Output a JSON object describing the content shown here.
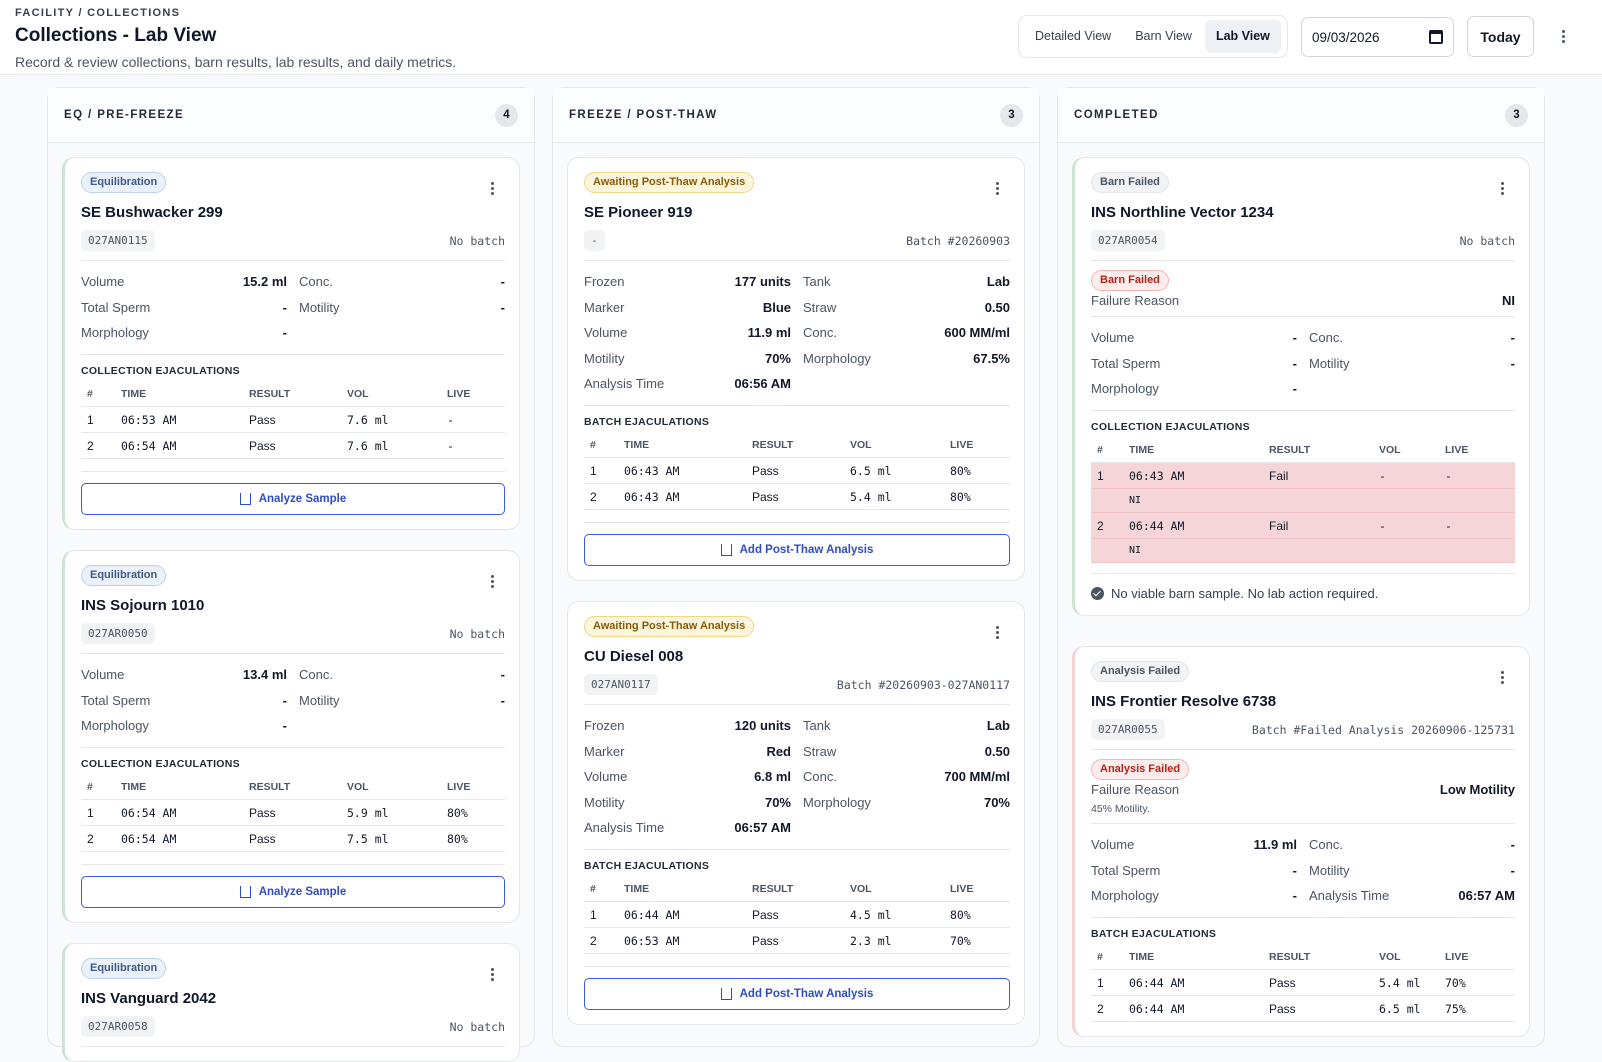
{
  "header": {
    "breadcrumb": "FACILITY / COLLECTIONS",
    "title": "Collections - Lab View",
    "subtitle": "Record & review collections, barn results, lab results, and daily metrics.",
    "views": [
      "Detailed View",
      "Barn View",
      "Lab View"
    ],
    "active_view": "Lab View",
    "date": "09/03/2026",
    "today_label": "Today"
  },
  "columns": [
    {
      "title": "EQ / PRE-FREEZE",
      "count": "4",
      "cards": [
        {
          "badge": "Equilibration",
          "name": "SE Bushwacker 299",
          "id": "027AN0115",
          "batch": "No batch",
          "metrics": [
            [
              "Volume",
              "15.2 ml"
            ],
            [
              "Conc.",
              "-"
            ],
            [
              "Total Sperm",
              "-"
            ],
            [
              "Motility",
              "-"
            ],
            [
              "Morphology",
              "-"
            ]
          ],
          "section": "COLLECTION EJACULATIONS",
          "headers": [
            "#",
            "TIME",
            "RESULT",
            "VOL",
            "LIVE"
          ],
          "rows": [
            [
              "1",
              "06:53 AM",
              "Pass",
              "7.6 ml",
              "-"
            ],
            [
              "2",
              "06:54 AM",
              "Pass",
              "7.6 ml",
              "-"
            ]
          ],
          "action": "Analyze Sample"
        },
        {
          "badge": "Equilibration",
          "name": "INS Sojourn 1010",
          "id": "027AR0050",
          "batch": "No batch",
          "metrics": [
            [
              "Volume",
              "13.4 ml"
            ],
            [
              "Conc.",
              "-"
            ],
            [
              "Total Sperm",
              "-"
            ],
            [
              "Motility",
              "-"
            ],
            [
              "Morphology",
              "-"
            ]
          ],
          "section": "COLLECTION EJACULATIONS",
          "headers": [
            "#",
            "TIME",
            "RESULT",
            "VOL",
            "LIVE"
          ],
          "rows": [
            [
              "1",
              "06:54 AM",
              "Pass",
              "5.9 ml",
              "80%"
            ],
            [
              "2",
              "06:54 AM",
              "Pass",
              "7.5 ml",
              "80%"
            ]
          ],
          "action": "Analyze Sample"
        },
        {
          "badge": "Equilibration",
          "name": "INS Vanguard 2042",
          "id": "027AR0058",
          "batch": "No batch"
        }
      ]
    },
    {
      "title": "FREEZE / POST-THAW",
      "count": "3",
      "cards": [
        {
          "badge": "Awaiting Post-Thaw Analysis",
          "name": "SE Pioneer 919",
          "id": "-",
          "batch": "Batch #20260903",
          "metrics": [
            [
              "Frozen",
              "177 units"
            ],
            [
              "Tank",
              "Lab"
            ],
            [
              "Marker",
              "Blue"
            ],
            [
              "Straw",
              "0.50"
            ],
            [
              "Volume",
              "11.9 ml"
            ],
            [
              "Conc.",
              "600 MM/ml"
            ],
            [
              "Motility",
              "70%"
            ],
            [
              "Morphology",
              "67.5%"
            ],
            [
              "Analysis Time",
              "06:56 AM"
            ]
          ],
          "section": "BATCH EJACULATIONS",
          "headers": [
            "#",
            "TIME",
            "RESULT",
            "VOL",
            "LIVE"
          ],
          "rows": [
            [
              "1",
              "06:43 AM",
              "Pass",
              "6.5 ml",
              "80%"
            ],
            [
              "2",
              "06:43 AM",
              "Pass",
              "5.4 ml",
              "80%"
            ]
          ],
          "action": "Add Post-Thaw Analysis"
        },
        {
          "badge": "Awaiting Post-Thaw Analysis",
          "name": "CU Diesel 008",
          "id": "027AN0117",
          "batch": "Batch #20260903-027AN0117",
          "metrics": [
            [
              "Frozen",
              "120 units"
            ],
            [
              "Tank",
              "Lab"
            ],
            [
              "Marker",
              "Red"
            ],
            [
              "Straw",
              "0.50"
            ],
            [
              "Volume",
              "6.8 ml"
            ],
            [
              "Conc.",
              "700 MM/ml"
            ],
            [
              "Motility",
              "70%"
            ],
            [
              "Morphology",
              "70%"
            ],
            [
              "Analysis Time",
              "06:57 AM"
            ]
          ],
          "section": "BATCH EJACULATIONS",
          "headers": [
            "#",
            "TIME",
            "RESULT",
            "VOL",
            "LIVE"
          ],
          "rows": [
            [
              "1",
              "06:44 AM",
              "Pass",
              "4.5 ml",
              "80%"
            ],
            [
              "2",
              "06:53 AM",
              "Pass",
              "2.3 ml",
              "70%"
            ]
          ],
          "action": "Add Post-Thaw Analysis"
        }
      ]
    },
    {
      "title": "COMPLETED",
      "count": "3",
      "cards": [
        {
          "badge": "Barn Failed",
          "name": "INS Northline Vector 1234",
          "id": "027AR0054",
          "batch": "No batch",
          "fail_badge": "Barn Failed",
          "fail_label": "Failure Reason",
          "fail_value": "NI",
          "metrics": [
            [
              "Volume",
              "-"
            ],
            [
              "Conc.",
              "-"
            ],
            [
              "Total Sperm",
              "-"
            ],
            [
              "Motility",
              "-"
            ],
            [
              "Morphology",
              "-"
            ]
          ],
          "section": "COLLECTION EJACULATIONS",
          "headers": [
            "#",
            "TIME",
            "RESULT",
            "VOL",
            "LIVE"
          ],
          "rows": [
            [
              "1",
              "06:43 AM",
              "Fail",
              "-",
              "-",
              "NI"
            ],
            [
              "2",
              "06:44 AM",
              "Fail",
              "-",
              "-",
              "NI"
            ]
          ],
          "note": "No viable barn sample. No lab action required."
        },
        {
          "badge": "Analysis Failed",
          "name": "INS Frontier Resolve 6738",
          "id": "027AR0055",
          "batch": "Batch #Failed Analysis 20260906-125731",
          "fail_badge": "Analysis Failed",
          "fail_label": "Failure Reason",
          "fail_value": "Low Motility",
          "fail_note": "45% Motility.",
          "metrics": [
            [
              "Volume",
              "11.9 ml"
            ],
            [
              "Conc.",
              "-"
            ],
            [
              "Total Sperm",
              "-"
            ],
            [
              "Motility",
              "-"
            ],
            [
              "Morphology",
              "-"
            ],
            [
              "Analysis Time",
              "06:57 AM"
            ]
          ],
          "section": "BATCH EJACULATIONS",
          "headers": [
            "#",
            "TIME",
            "RESULT",
            "VOL",
            "LIVE"
          ],
          "rows": [
            [
              "1",
              "06:44 AM",
              "Pass",
              "5.4 ml",
              "70%"
            ],
            [
              "2",
              "06:44 AM",
              "Pass",
              "6.5 ml",
              "75%"
            ]
          ]
        }
      ]
    }
  ]
}
